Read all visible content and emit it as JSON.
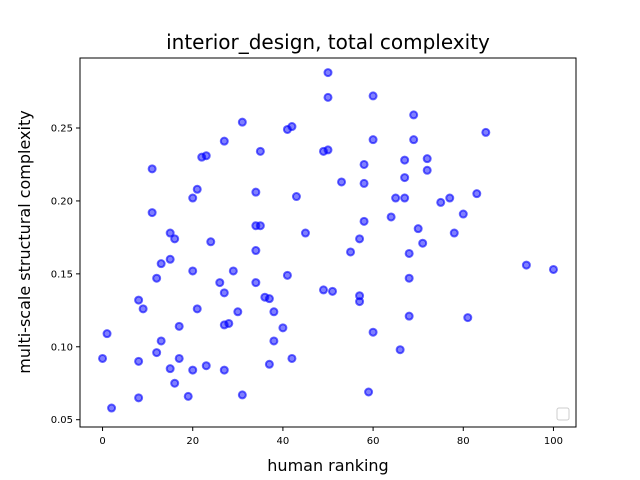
{
  "chart_data": {
    "type": "scatter",
    "title": "interior_design, total complexity",
    "xlabel": "human ranking",
    "ylabel": "multi-scale structural complexity",
    "xlim": [
      -5,
      105
    ],
    "ylim": [
      0.045,
      0.298
    ],
    "xticks": [
      0,
      20,
      40,
      60,
      80,
      100
    ],
    "xtick_labels": [
      "0",
      "20",
      "40",
      "60",
      "80",
      "100"
    ],
    "yticks": [
      0.05,
      0.1,
      0.15,
      0.2,
      0.25
    ],
    "ytick_labels": [
      "0.05",
      "0.10",
      "0.15",
      "0.20",
      "0.25"
    ],
    "grid": false,
    "legend": {
      "placement": "bottom-right",
      "entries": []
    },
    "color": "#0000ff",
    "points": [
      [
        0,
        0.092
      ],
      [
        1,
        0.109
      ],
      [
        2,
        0.058
      ],
      [
        8,
        0.065
      ],
      [
        8,
        0.09
      ],
      [
        8,
        0.132
      ],
      [
        9,
        0.126
      ],
      [
        11,
        0.222
      ],
      [
        11,
        0.192
      ],
      [
        12,
        0.147
      ],
      [
        12,
        0.096
      ],
      [
        13,
        0.104
      ],
      [
        13,
        0.157
      ],
      [
        15,
        0.178
      ],
      [
        15,
        0.16
      ],
      [
        15,
        0.085
      ],
      [
        16,
        0.174
      ],
      [
        16,
        0.075
      ],
      [
        17,
        0.114
      ],
      [
        17,
        0.092
      ],
      [
        19,
        0.066
      ],
      [
        20,
        0.202
      ],
      [
        20,
        0.152
      ],
      [
        20,
        0.084
      ],
      [
        21,
        0.208
      ],
      [
        21,
        0.126
      ],
      [
        22,
        0.23
      ],
      [
        23,
        0.231
      ],
      [
        23,
        0.087
      ],
      [
        24,
        0.172
      ],
      [
        26,
        0.144
      ],
      [
        27,
        0.241
      ],
      [
        27,
        0.137
      ],
      [
        27,
        0.115
      ],
      [
        27,
        0.084
      ],
      [
        28,
        0.116
      ],
      [
        29,
        0.152
      ],
      [
        30,
        0.124
      ],
      [
        31,
        0.254
      ],
      [
        31,
        0.067
      ],
      [
        34,
        0.206
      ],
      [
        34,
        0.183
      ],
      [
        34,
        0.166
      ],
      [
        34,
        0.144
      ],
      [
        35,
        0.234
      ],
      [
        35,
        0.183
      ],
      [
        36,
        0.134
      ],
      [
        37,
        0.133
      ],
      [
        37,
        0.088
      ],
      [
        38,
        0.124
      ],
      [
        38,
        0.104
      ],
      [
        40,
        0.113
      ],
      [
        41,
        0.249
      ],
      [
        41,
        0.149
      ],
      [
        42,
        0.251
      ],
      [
        42,
        0.092
      ],
      [
        43,
        0.203
      ],
      [
        45,
        0.178
      ],
      [
        49,
        0.234
      ],
      [
        49,
        0.139
      ],
      [
        50,
        0.288
      ],
      [
        50,
        0.271
      ],
      [
        50,
        0.235
      ],
      [
        51,
        0.138
      ],
      [
        53,
        0.213
      ],
      [
        55,
        0.165
      ],
      [
        57,
        0.174
      ],
      [
        57,
        0.135
      ],
      [
        57,
        0.131
      ],
      [
        58,
        0.225
      ],
      [
        58,
        0.212
      ],
      [
        58,
        0.186
      ],
      [
        59,
        0.069
      ],
      [
        60,
        0.272
      ],
      [
        60,
        0.242
      ],
      [
        60,
        0.11
      ],
      [
        64,
        0.189
      ],
      [
        65,
        0.202
      ],
      [
        66,
        0.098
      ],
      [
        67,
        0.228
      ],
      [
        67,
        0.216
      ],
      [
        67,
        0.202
      ],
      [
        68,
        0.164
      ],
      [
        68,
        0.147
      ],
      [
        68,
        0.121
      ],
      [
        69,
        0.259
      ],
      [
        69,
        0.242
      ],
      [
        70,
        0.181
      ],
      [
        71,
        0.171
      ],
      [
        72,
        0.229
      ],
      [
        72,
        0.221
      ],
      [
        75,
        0.199
      ],
      [
        77,
        0.202
      ],
      [
        78,
        0.178
      ],
      [
        80,
        0.191
      ],
      [
        81,
        0.12
      ],
      [
        83,
        0.205
      ],
      [
        85,
        0.247
      ],
      [
        94,
        0.156
      ],
      [
        100,
        0.153
      ]
    ]
  }
}
